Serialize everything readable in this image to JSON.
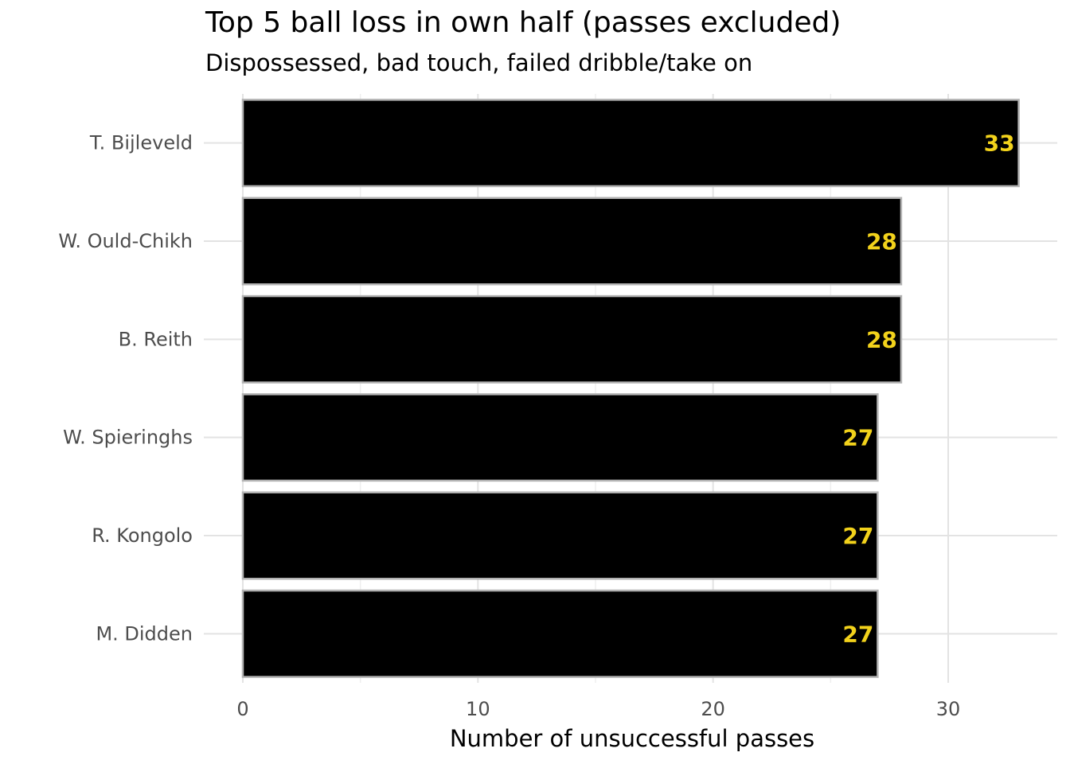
{
  "chart_data": {
    "type": "bar",
    "orientation": "horizontal",
    "title": "Top 5 ball loss in own half (passes excluded)",
    "subtitle": "Dispossessed, bad touch, failed dribble/take on",
    "xlabel": "Number of unsuccessful passes",
    "ylabel": "",
    "categories": [
      "T. Bijleveld",
      "W. Ould-Chikh",
      "B. Reith",
      "W. Spieringhs",
      "R. Kongolo",
      "M. Didden"
    ],
    "values": [
      33,
      28,
      28,
      27,
      27,
      27
    ],
    "xlim": [
      0,
      34.5
    ],
    "xticks": [
      "0",
      "10",
      "20",
      "30"
    ],
    "grid": true,
    "bar_color": "#000000",
    "bar_outline_color": "#b3b3b3",
    "label_color": "#f2d21b"
  }
}
